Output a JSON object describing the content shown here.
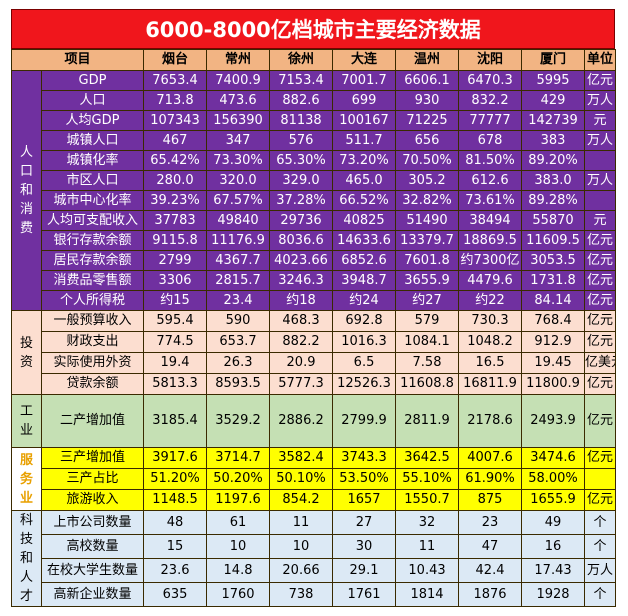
{
  "title": "6000-8000亿档城市主要经济数据",
  "header": {
    "item": "项目",
    "cities": [
      "烟台",
      "常州",
      "徐州",
      "大连",
      "温州",
      "沈阳",
      "厦门"
    ],
    "unit": "单位"
  },
  "sections": [
    {
      "key": "pop",
      "label": [
        "人",
        "口",
        "和",
        "消",
        "费"
      ],
      "rows": [
        {
          "name": "GDP",
          "values": [
            "7653.4",
            "7400.9",
            "7153.4",
            "7001.7",
            "6606.1",
            "6470.3",
            "5995"
          ],
          "unit": "亿元"
        },
        {
          "name": "人口",
          "values": [
            "713.8",
            "473.6",
            "882.6",
            "699",
            "930",
            "832.2",
            "429"
          ],
          "unit": "万人"
        },
        {
          "name": "人均GDP",
          "values": [
            "107343",
            "156390",
            "81138",
            "100167",
            "71225",
            "77777",
            "142739"
          ],
          "unit": "元"
        },
        {
          "name": "城镇人口",
          "values": [
            "467",
            "347",
            "576",
            "511.7",
            "656",
            "678",
            "383"
          ],
          "unit": "万人"
        },
        {
          "name": "城镇化率",
          "values": [
            "65.42%",
            "73.30%",
            "65.30%",
            "73.20%",
            "70.50%",
            "81.50%",
            "89.20%"
          ],
          "unit": ""
        },
        {
          "name": "市区人口",
          "values": [
            "280.0",
            "320.0",
            "329.0",
            "465.0",
            "305.2",
            "612.6",
            "383.0"
          ],
          "unit": "万人"
        },
        {
          "name": "城市中心化率",
          "values": [
            "39.23%",
            "67.57%",
            "37.28%",
            "66.52%",
            "32.82%",
            "73.61%",
            "89.28%"
          ],
          "unit": ""
        },
        {
          "name": "人均可支配收入",
          "values": [
            "37783",
            "49840",
            "29736",
            "40825",
            "51490",
            "38494",
            "55870"
          ],
          "unit": "元"
        },
        {
          "name": "银行存款余额",
          "values": [
            "9115.8",
            "11176.9",
            "8036.6",
            "14633.6",
            "13379.7",
            "18869.5",
            "11609.5"
          ],
          "unit": "亿元"
        },
        {
          "name": "居民存款余额",
          "values": [
            "2799",
            "4367.7",
            "4023.66",
            "6852.6",
            "7601.8",
            "约7300亿",
            "3053.5"
          ],
          "unit": "亿元"
        },
        {
          "name": "消费品零售额",
          "values": [
            "3306",
            "2815.7",
            "3246.3",
            "3948.7",
            "3655.9",
            "4479.6",
            "1731.8"
          ],
          "unit": "亿元"
        },
        {
          "name": "个人所得税",
          "values": [
            "约15",
            "23.4",
            "约18",
            "约24",
            "约27",
            "约22",
            "84.14"
          ],
          "unit": "亿元"
        }
      ]
    },
    {
      "key": "inv",
      "label": [
        "投",
        "资"
      ],
      "rows": [
        {
          "name": "一般预算收入",
          "values": [
            "595.4",
            "590",
            "468.3",
            "692.8",
            "579",
            "730.3",
            "768.4"
          ],
          "unit": "亿元"
        },
        {
          "name": "财政支出",
          "values": [
            "774.5",
            "653.7",
            "882.2",
            "1016.3",
            "1084.1",
            "1048.2",
            "912.9"
          ],
          "unit": "亿元"
        },
        {
          "name": "实际使用外资",
          "values": [
            "19.4",
            "26.3",
            "20.9",
            "6.5",
            "7.58",
            "16.5",
            "19.45"
          ],
          "unit": "亿美元"
        },
        {
          "name": "贷款余额",
          "values": [
            "5813.3",
            "8593.5",
            "5777.3",
            "12526.3",
            "11608.8",
            "16811.9",
            "11800.9"
          ],
          "unit": "亿元"
        }
      ]
    },
    {
      "key": "ind",
      "label": [
        "工",
        "业"
      ],
      "rows": [
        {
          "name": "二产增加值",
          "values": [
            "3185.4",
            "3529.2",
            "2886.2",
            "2799.9",
            "2811.9",
            "2178.6",
            "2493.9"
          ],
          "unit": "亿元"
        }
      ]
    },
    {
      "key": "srv",
      "label": [
        "服",
        "务",
        "业"
      ],
      "rows": [
        {
          "name": "三产增加值",
          "values": [
            "3917.6",
            "3714.7",
            "3582.4",
            "3743.3",
            "3642.5",
            "4007.6",
            "3474.6"
          ],
          "unit": "亿元"
        },
        {
          "name": "三产占比",
          "values": [
            "51.20%",
            "50.20%",
            "50.10%",
            "53.50%",
            "55.10%",
            "61.90%",
            "58.00%"
          ],
          "unit": ""
        },
        {
          "name": "旅游收入",
          "values": [
            "1148.5",
            "1197.6",
            "854.2",
            "1657",
            "1550.7",
            "875",
            "1655.9"
          ],
          "unit": "亿元"
        }
      ]
    },
    {
      "key": "tal",
      "label": [
        "科",
        "技",
        "和",
        "人",
        "才"
      ],
      "rows": [
        {
          "name": "上市公司数量",
          "values": [
            "48",
            "61",
            "11",
            "27",
            "32",
            "23",
            "49"
          ],
          "unit": "个"
        },
        {
          "name": "高校数量",
          "values": [
            "15",
            "10",
            "10",
            "30",
            "11",
            "47",
            "16"
          ],
          "unit": "个"
        },
        {
          "name": "在校大学生数量",
          "values": [
            "23.6",
            "14.8",
            "20.66",
            "29.1",
            "10.43",
            "42.4",
            "17.43"
          ],
          "unit": "万人"
        },
        {
          "name": "高新企业数量",
          "values": [
            "635",
            "1760",
            "738",
            "1761",
            "1814",
            "1876",
            "1928"
          ],
          "unit": "个"
        }
      ]
    }
  ]
}
